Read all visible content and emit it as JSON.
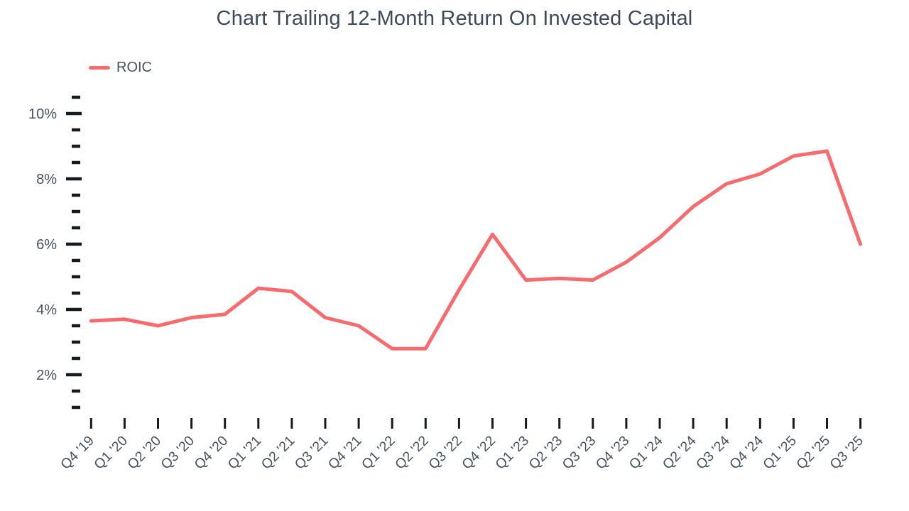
{
  "colors": {
    "background": "#ffffff",
    "title_text": "#3d4a5c",
    "axis_text": "#47525f",
    "tick": "#16191d",
    "line": "#f76b6e"
  },
  "chart_data": {
    "type": "line",
    "title": "Chart Trailing 12-Month Return On Invested Capital",
    "legend_position": "top-left",
    "grid": false,
    "categories": [
      "Q4 '19",
      "Q1 '20",
      "Q2 '20",
      "Q3 '20",
      "Q4 '20",
      "Q1 '21",
      "Q2 '21",
      "Q3 '21",
      "Q4 '21",
      "Q1 '22",
      "Q2 '22",
      "Q3 '22",
      "Q4 '22",
      "Q1 '23",
      "Q2 '23",
      "Q3 '23",
      "Q4 '23",
      "Q1 '24",
      "Q2 '24",
      "Q3 '24",
      "Q4 '24",
      "Q1 '25",
      "Q2 '25",
      "Q3 '25"
    ],
    "series": [
      {
        "name": "ROIC",
        "color": "#f76b6e",
        "values": [
          3.65,
          3.7,
          3.5,
          3.75,
          3.85,
          4.65,
          4.55,
          3.75,
          3.5,
          2.8,
          2.8,
          4.6,
          6.3,
          4.9,
          4.95,
          4.9,
          5.45,
          6.2,
          7.15,
          7.85,
          8.15,
          8.7,
          8.85,
          6.0
        ]
      }
    ],
    "xlabel": "",
    "ylabel": "",
    "y_axis": {
      "unit": "%",
      "tick_min": 1.0,
      "tick_max": 10.5,
      "minor_step": 0.5,
      "labeled_values": [
        2,
        4,
        6,
        8,
        10
      ],
      "tick_labels": [
        "2%",
        "4%",
        "6%",
        "8%",
        "10%"
      ]
    },
    "ylim": [
      0.75,
      10.75
    ]
  }
}
